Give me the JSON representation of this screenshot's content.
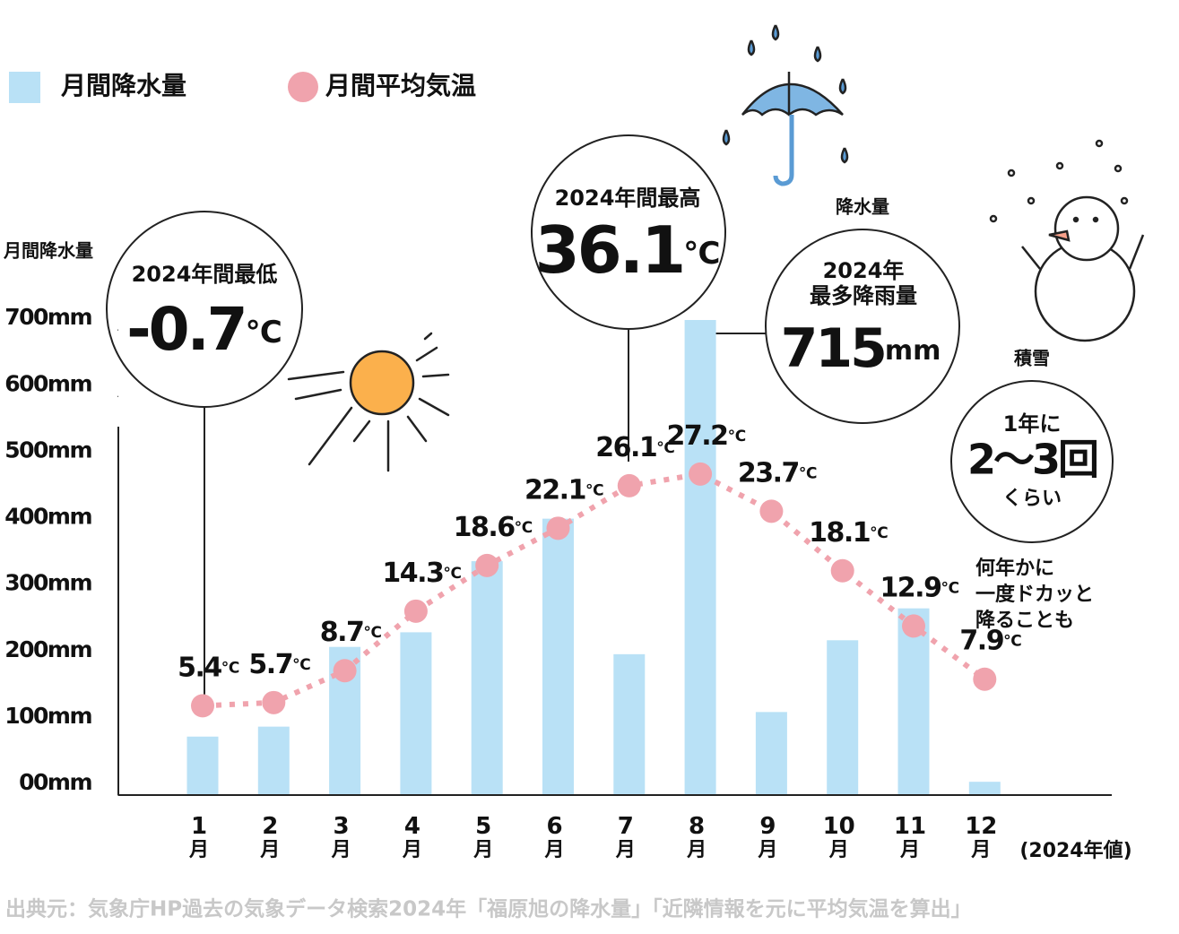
{
  "chart_data": {
    "type": "bar",
    "categories": [
      "1月",
      "2月",
      "3月",
      "4月",
      "5月",
      "6月",
      "7月",
      "8月",
      "9月",
      "10月",
      "11月",
      "12月"
    ],
    "series": [
      {
        "name": "月間降水量",
        "type": "bar",
        "color": "#b9e1f6",
        "values": [
          88,
          103,
          223,
          245,
          352,
          416,
          212,
          715,
          125,
          233,
          281,
          20
        ]
      },
      {
        "name": "月間平均気温",
        "type": "line",
        "axis": "y2",
        "color": "#f0a3ad",
        "values": [
          5.4,
          5.7,
          8.7,
          14.3,
          18.6,
          22.1,
          26.1,
          27.2,
          23.7,
          18.1,
          12.9,
          7.9
        ],
        "value_labels": [
          "5.4℃",
          "5.7℃",
          "8.7℃",
          "14.3℃",
          "18.6℃",
          "22.1℃",
          "26.1℃",
          "27.2℃",
          "23.7℃",
          "18.1℃",
          "12.9℃",
          "7.9℃"
        ]
      }
    ],
    "y_label": "月間降水量",
    "ylim": [
      0,
      800
    ],
    "yticks": [
      {
        "value": 0,
        "label": "00mm"
      },
      {
        "value": 100,
        "label": "100mm"
      },
      {
        "value": 200,
        "label": "200mm"
      },
      {
        "value": 300,
        "label": "300mm"
      },
      {
        "value": 400,
        "label": "400mm"
      },
      {
        "value": 500,
        "label": "500mm"
      },
      {
        "value": 600,
        "label": "600mm"
      },
      {
        "value": 700,
        "label": "700mm"
      }
    ],
    "y2lim": [
      -3,
      47
    ],
    "x_note": "(2024年値)",
    "callouts": {
      "min": {
        "title": "2024年間最低",
        "value": "-0.7",
        "unit": "℃"
      },
      "max": {
        "title": "2024年間最高",
        "value": "36.1",
        "unit": "℃"
      },
      "rain": {
        "header": "降水量",
        "lines": [
          "2024年",
          "最多降雨量"
        ],
        "value": "715",
        "unit": "mm"
      },
      "snow": {
        "header": "積雪",
        "lines": [
          "1年に",
          "2〜3回",
          "くらい"
        ]
      },
      "note": [
        "何年かに",
        "一度ドカッと",
        "降ることも"
      ]
    },
    "source": "出典元：気象庁HP過去の気象データ検索2024年「福原旭の降水量」「近隣情報を元に平均気温を算出」"
  }
}
